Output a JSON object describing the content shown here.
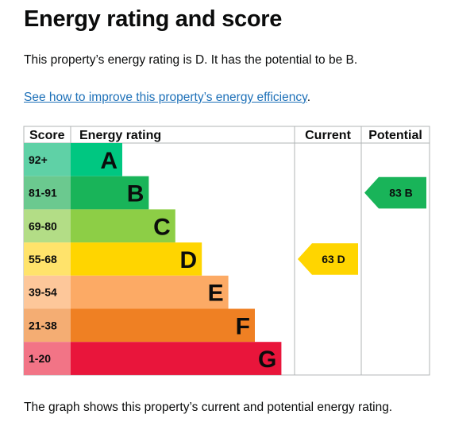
{
  "page": {
    "title": "Energy rating and score",
    "intro": "This property’s energy rating is D. It has the potential to be B.",
    "link_text": "See how to improve this property’s energy efficiency",
    "link_suffix": ".",
    "footer": "The graph shows this property’s current and potential energy rating."
  },
  "chart_data": {
    "type": "bar",
    "headers": {
      "score": "Score",
      "rating": "Energy rating",
      "current": "Current",
      "potential": "Potential"
    },
    "bands": [
      {
        "score": "92+",
        "letter": "A",
        "color": "#00c781",
        "score_color": "#5fd1a6"
      },
      {
        "score": "81-91",
        "letter": "B",
        "color": "#19b459",
        "score_color": "#6bc98f"
      },
      {
        "score": "69-80",
        "letter": "C",
        "color": "#8dce46",
        "score_color": "#b3dd86"
      },
      {
        "score": "55-68",
        "letter": "D",
        "color": "#ffd500",
        "score_color": "#ffe36b"
      },
      {
        "score": "39-54",
        "letter": "E",
        "color": "#fcaa65",
        "score_color": "#fdc79a"
      },
      {
        "score": "21-38",
        "letter": "F",
        "color": "#ef8023",
        "score_color": "#f4ad73"
      },
      {
        "score": "1-20",
        "letter": "G",
        "color": "#e9153b",
        "score_color": "#f27486"
      }
    ],
    "current": {
      "value": 63,
      "letter": "D",
      "label": "63 D",
      "color": "#ffd500"
    },
    "potential": {
      "value": 83,
      "letter": "B",
      "label": "83 B",
      "color": "#19b459"
    }
  }
}
